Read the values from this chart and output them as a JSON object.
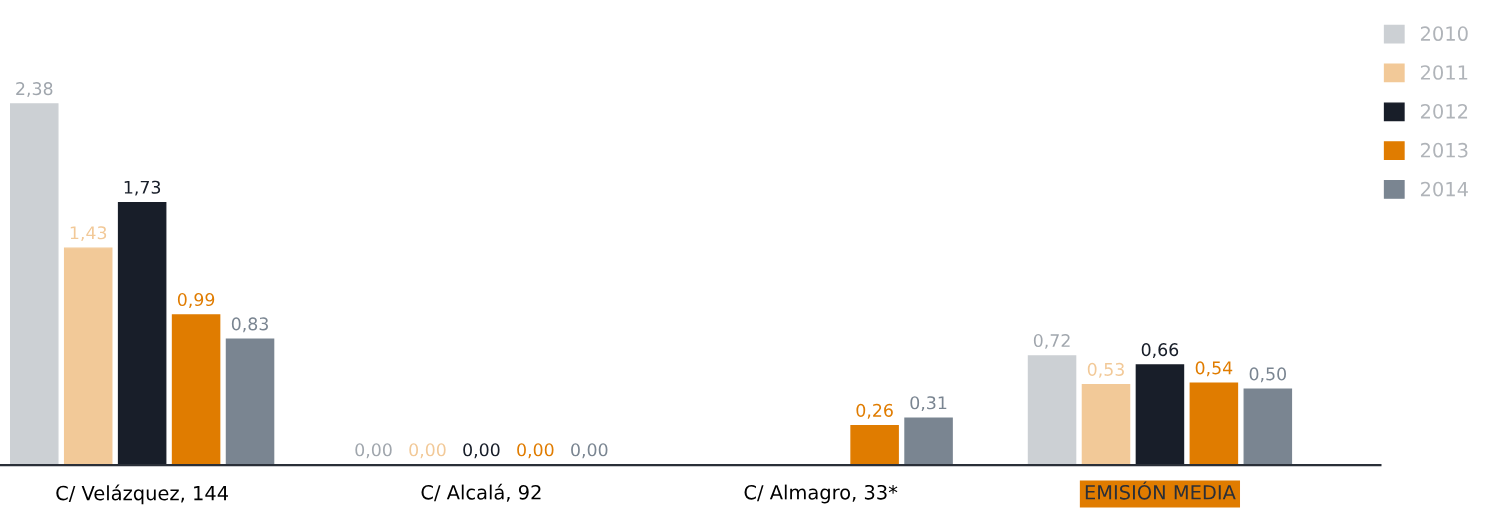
{
  "chart_data": {
    "type": "bar",
    "categories": [
      "C/ Velázquez, 144",
      "C/ Alcalá, 92",
      "C/ Almagro, 33*",
      "EMISIÓN MEDIA"
    ],
    "series": [
      {
        "name": "2010",
        "color": "#ccd0d4",
        "values": [
          2.38,
          0.0,
          null,
          0.72
        ],
        "value_labels": [
          "2,38",
          "0,00",
          null,
          "0,72"
        ]
      },
      {
        "name": "2011",
        "color": "#f2c998",
        "values": [
          1.43,
          0.0,
          null,
          0.53
        ],
        "value_labels": [
          "1,43",
          "0,00",
          null,
          "0,53"
        ]
      },
      {
        "name": "2012",
        "color": "#181e29",
        "values": [
          1.73,
          0.0,
          null,
          0.66
        ],
        "value_labels": [
          "1,73",
          "0,00",
          null,
          "0,66"
        ]
      },
      {
        "name": "2013",
        "color": "#e07c00",
        "values": [
          0.99,
          0.0,
          0.26,
          0.54
        ],
        "value_labels": [
          "0,99",
          "0,00",
          "0,26",
          "0,54"
        ]
      },
      {
        "name": "2014",
        "color": "#7a8591",
        "values": [
          0.83,
          0.0,
          0.31,
          0.5
        ],
        "value_labels": [
          "0,83",
          "0,00",
          "0,31",
          "0,50"
        ]
      }
    ],
    "legend": "top right",
    "grid": false
  }
}
